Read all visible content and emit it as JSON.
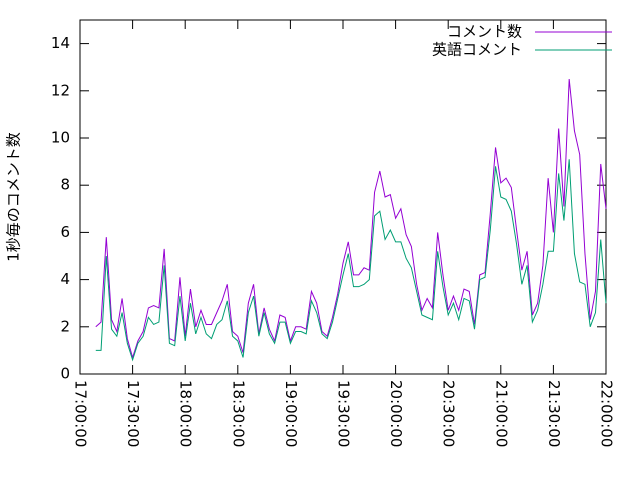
{
  "chart_data": {
    "type": "line",
    "y_label": "1秒毎のコメント数",
    "x": [
      "17:09:00",
      "17:12:00",
      "17:15:00",
      "17:18:00",
      "17:21:00",
      "17:24:00",
      "17:27:00",
      "17:30:00",
      "17:33:00",
      "17:36:00",
      "17:39:00",
      "17:42:00",
      "17:45:00",
      "17:48:00",
      "17:51:00",
      "17:54:00",
      "17:57:00",
      "18:00:00",
      "18:03:00",
      "18:06:00",
      "18:09:00",
      "18:12:00",
      "18:15:00",
      "18:18:00",
      "18:21:00",
      "18:24:00",
      "18:27:00",
      "18:30:00",
      "18:33:00",
      "18:36:00",
      "18:39:00",
      "18:42:00",
      "18:45:00",
      "18:48:00",
      "18:51:00",
      "18:54:00",
      "18:57:00",
      "19:00:00",
      "19:03:00",
      "19:06:00",
      "19:09:00",
      "19:12:00",
      "19:15:00",
      "19:18:00",
      "19:21:00",
      "19:24:00",
      "19:27:00",
      "19:30:00",
      "19:33:00",
      "19:36:00",
      "19:39:00",
      "19:42:00",
      "19:45:00",
      "19:48:00",
      "19:51:00",
      "19:54:00",
      "19:57:00",
      "20:00:00",
      "20:03:00",
      "20:06:00",
      "20:09:00",
      "20:12:00",
      "20:15:00",
      "20:18:00",
      "20:21:00",
      "20:24:00",
      "20:27:00",
      "20:30:00",
      "20:33:00",
      "20:36:00",
      "20:39:00",
      "20:42:00",
      "20:45:00",
      "20:48:00",
      "20:51:00",
      "20:54:00",
      "20:57:00",
      "21:00:00",
      "21:03:00",
      "21:06:00",
      "21:09:00",
      "21:12:00",
      "21:15:00",
      "21:18:00",
      "21:21:00",
      "21:24:00",
      "21:27:00",
      "21:30:00",
      "21:33:00",
      "21:36:00",
      "21:39:00",
      "21:42:00",
      "21:45:00",
      "21:48:00",
      "21:51:00",
      "21:54:00",
      "21:57:00",
      "22:00:00"
    ],
    "series": [
      {
        "name": "コメント数",
        "color": "#9400d3",
        "values": [
          2.0,
          2.2,
          5.8,
          2.3,
          1.8,
          3.2,
          1.5,
          0.7,
          1.4,
          1.8,
          2.8,
          2.9,
          2.8,
          5.3,
          1.5,
          1.4,
          4.1,
          1.6,
          3.6,
          2.0,
          2.7,
          2.1,
          2.1,
          2.6,
          3.1,
          3.8,
          1.8,
          1.6,
          0.9,
          3.0,
          3.8,
          1.7,
          2.8,
          1.9,
          1.4,
          2.5,
          2.4,
          1.4,
          2.0,
          2.0,
          1.9,
          3.5,
          3.0,
          1.8,
          1.6,
          2.4,
          3.4,
          4.7,
          5.6,
          4.2,
          4.2,
          4.5,
          4.4,
          7.7,
          8.6,
          7.5,
          7.6,
          6.6,
          7.0,
          5.9,
          5.4,
          3.8,
          2.7,
          3.2,
          2.8,
          6.0,
          4.2,
          2.7,
          3.3,
          2.7,
          3.6,
          3.5,
          2.1,
          4.2,
          4.3,
          6.8,
          9.6,
          8.1,
          8.3,
          7.9,
          6.1,
          4.4,
          5.2,
          2.5,
          3.0,
          4.6,
          8.3,
          6.0,
          10.4,
          7.1,
          12.5,
          10.3,
          9.3,
          5.1,
          2.3,
          3.5,
          8.9,
          7.0
        ]
      },
      {
        "name": "英語コメント",
        "color": "#009e73",
        "values": [
          1.0,
          1.0,
          5.0,
          1.9,
          1.6,
          2.6,
          1.3,
          0.6,
          1.3,
          1.6,
          2.4,
          2.1,
          2.2,
          4.6,
          1.3,
          1.2,
          3.3,
          1.4,
          3.0,
          1.7,
          2.4,
          1.7,
          1.5,
          2.1,
          2.3,
          3.1,
          1.6,
          1.4,
          0.7,
          2.6,
          3.3,
          1.6,
          2.6,
          1.7,
          1.3,
          2.2,
          2.2,
          1.3,
          1.8,
          1.8,
          1.7,
          3.1,
          2.6,
          1.7,
          1.5,
          2.2,
          3.2,
          4.2,
          5.1,
          3.7,
          3.7,
          3.8,
          4.0,
          6.7,
          6.9,
          5.7,
          6.1,
          5.6,
          5.6,
          4.9,
          4.5,
          3.5,
          2.5,
          2.4,
          2.3,
          5.2,
          3.7,
          2.5,
          3.0,
          2.3,
          3.2,
          3.1,
          1.9,
          4.0,
          4.1,
          6.1,
          8.8,
          7.5,
          7.4,
          6.9,
          5.5,
          3.8,
          4.6,
          2.2,
          2.7,
          3.8,
          5.2,
          5.2,
          8.5,
          6.5,
          9.1,
          5.1,
          3.9,
          3.8,
          2.0,
          2.6,
          5.7,
          3.0
        ]
      }
    ],
    "xlim": [
      "17:00:00",
      "22:00:00"
    ],
    "xticks": [
      "17:00:00",
      "17:30:00",
      "18:00:00",
      "18:30:00",
      "19:00:00",
      "19:30:00",
      "20:00:00",
      "20:30:00",
      "21:00:00",
      "21:30:00",
      "22:00:00"
    ],
    "ylim": [
      0,
      15
    ],
    "yticks": [
      0,
      2,
      4,
      6,
      8,
      10,
      12,
      14
    ],
    "legend": "top-right"
  }
}
